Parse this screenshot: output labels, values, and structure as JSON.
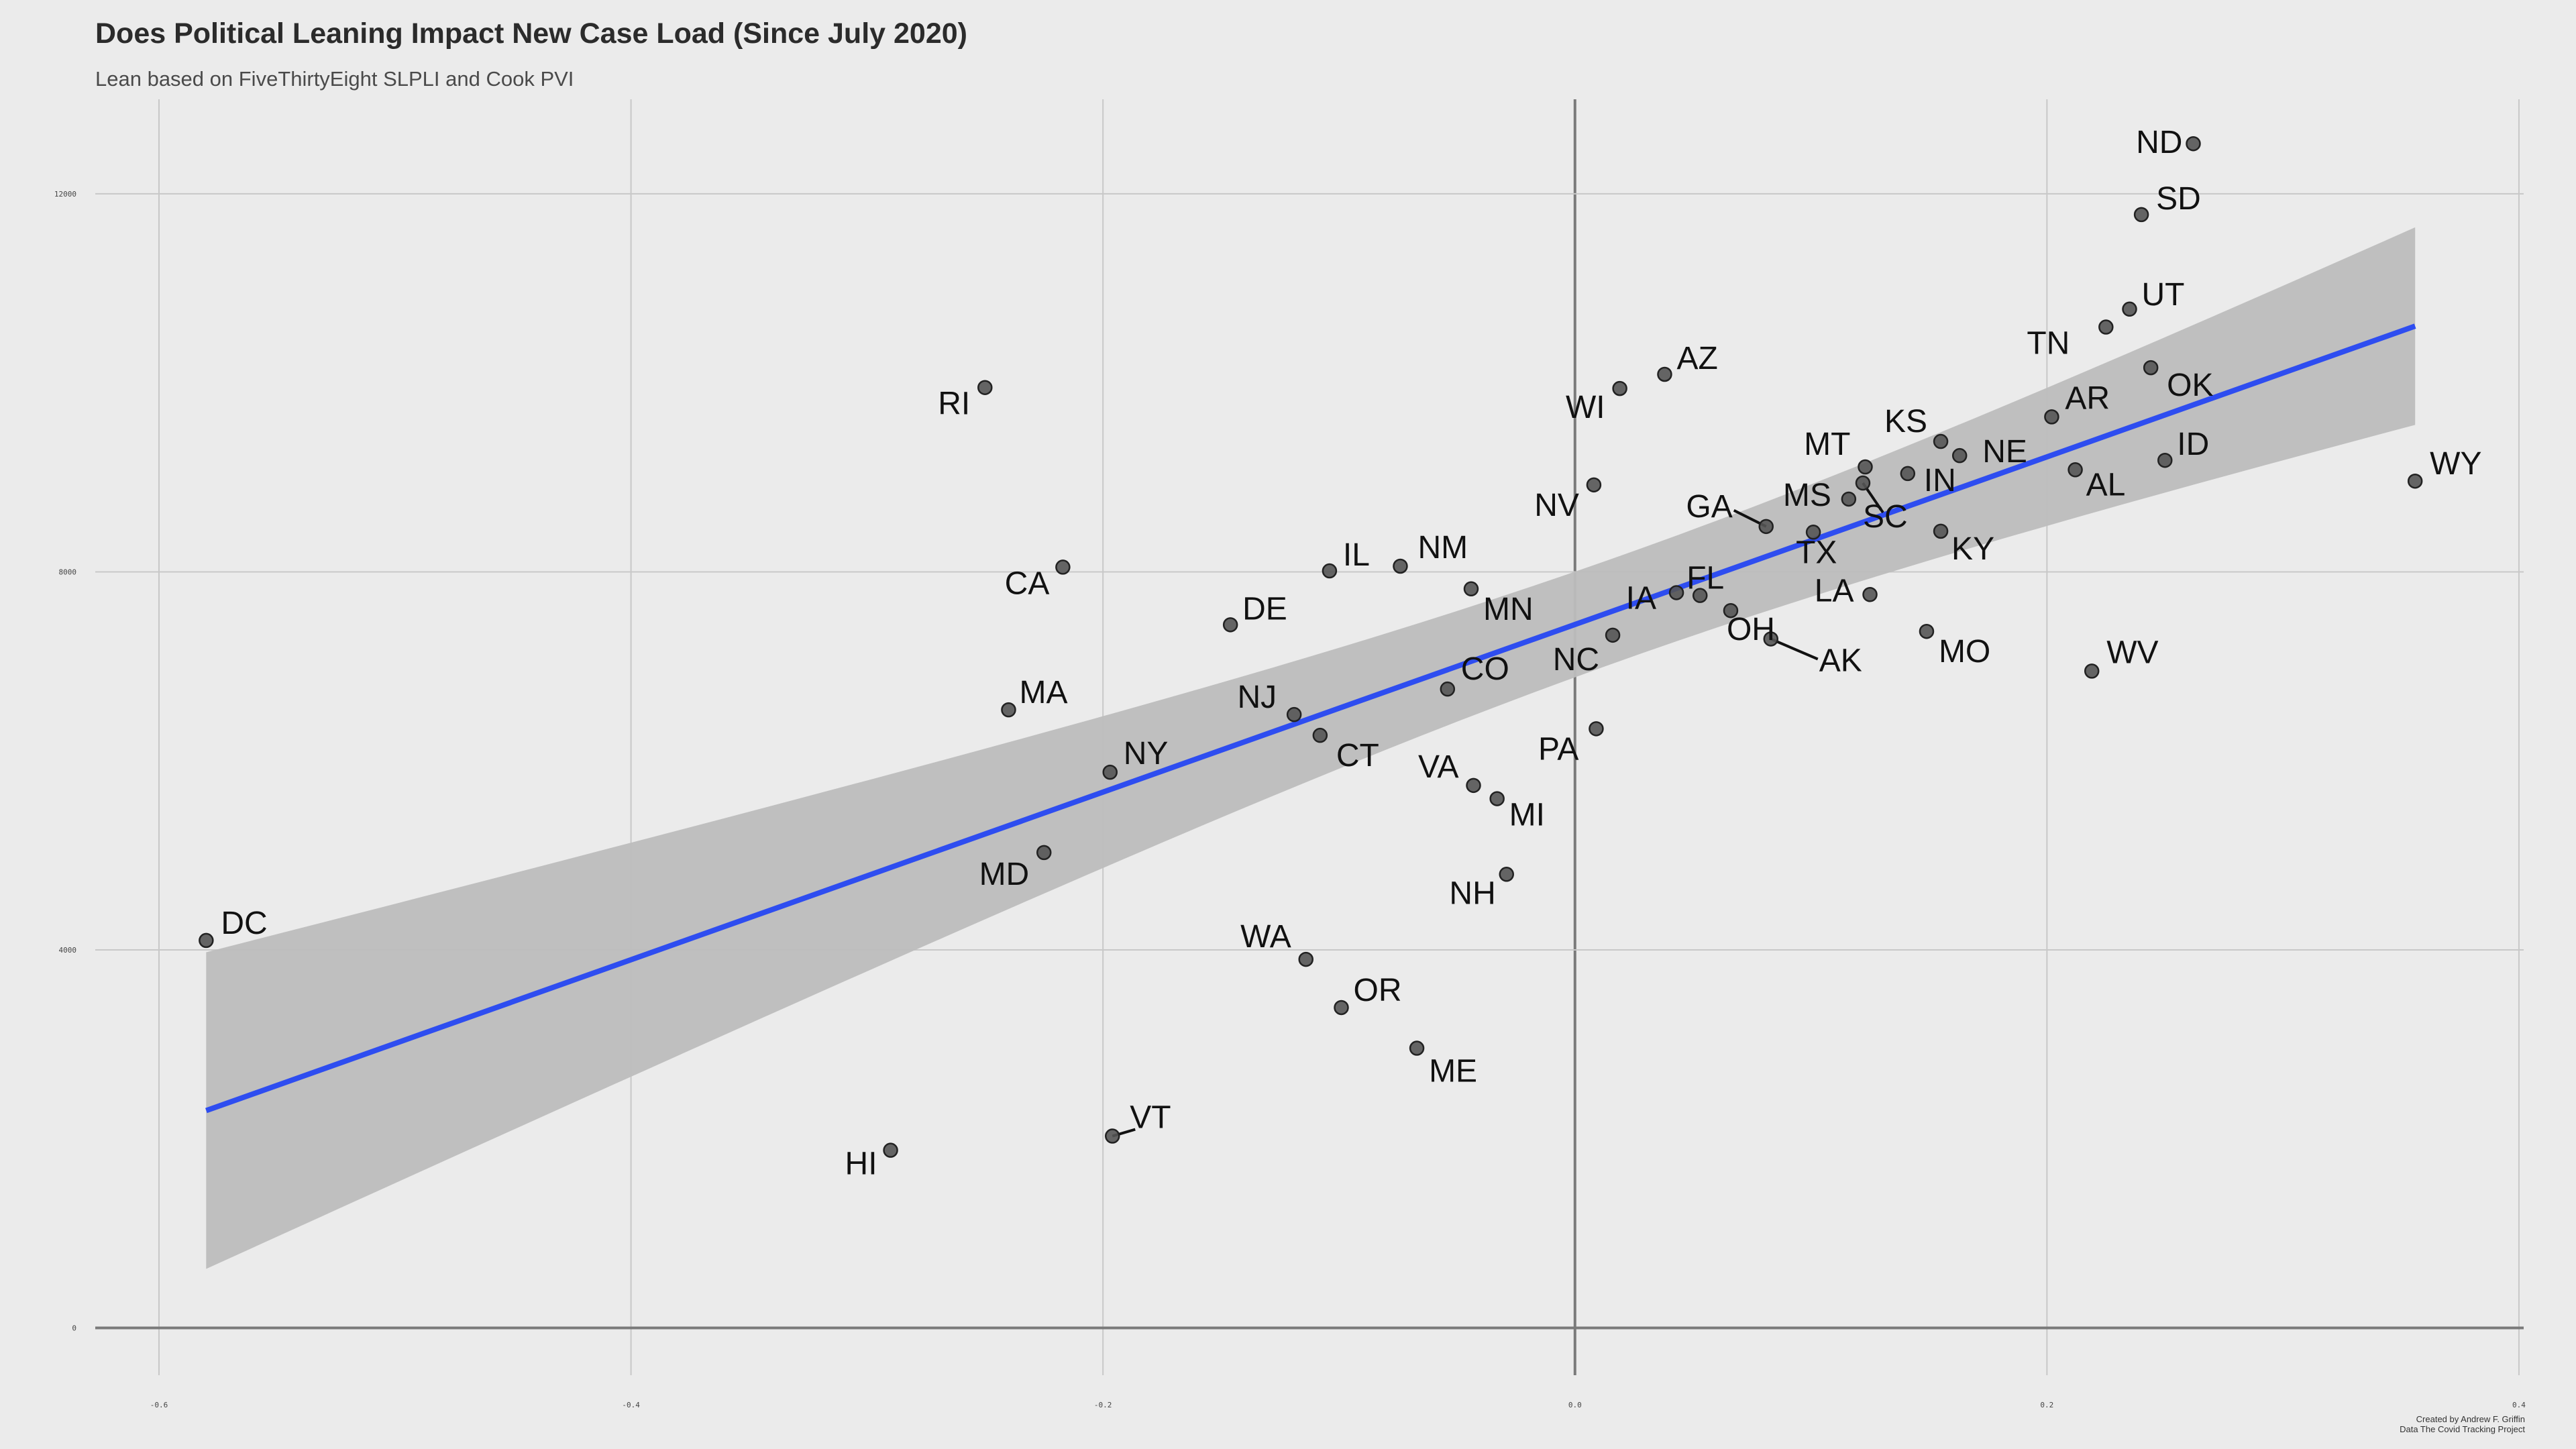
{
  "title": "Does Political Leaning Impact New Case Load (Since July 2020)",
  "subtitle": "Lean based on FiveThirtyEight SLPLI and Cook PVI",
  "caption": {
    "line1": "Created by Andrew F. Griffin",
    "line2": "Data The Covid Tracking Project"
  },
  "colors": {
    "background": "#ebebeb",
    "grid": "#c8c8c8",
    "zero_axis": "#7a7a7a",
    "point": "#555555",
    "regression_line": "#2e4df0",
    "confidence_band": "#bdbdbd"
  },
  "chart_data": {
    "type": "scatter",
    "title": "Does Political Leaning Impact New Case Load (Since July 2020)",
    "subtitle": "Lean based on FiveThirtyEight SLPLI and Cook PVI",
    "xlabel": "",
    "ylabel": "",
    "xlim": [
      -0.627,
      0.402
    ],
    "ylim": [
      -500,
      13000
    ],
    "x_ticks": [
      -0.6,
      -0.4,
      -0.2,
      0.0,
      0.2,
      0.4
    ],
    "x_tick_labels": [
      "-0.6",
      "-0.4",
      "-0.2",
      "0.0",
      "0.2",
      "0.4"
    ],
    "y_ticks": [
      0,
      4000,
      8000,
      12000
    ],
    "y_tick_labels": [
      "0",
      "4000",
      "8000",
      "12000"
    ],
    "grid": true,
    "legend": "none",
    "regression": {
      "x_range": [
        -0.58,
        0.356
      ],
      "y_at_start": 2300,
      "y_at_end": 10600,
      "band_lower": [
        650,
        9560
      ],
      "band_upper": [
        4000,
        11650
      ]
    },
    "points": [
      {
        "label": "DC",
        "x": -0.58,
        "y": 4100
      },
      {
        "label": "HI",
        "x": -0.29,
        "y": 1880
      },
      {
        "label": "VT",
        "x": -0.196,
        "y": 2030
      },
      {
        "label": "RI",
        "x": -0.25,
        "y": 9950
      },
      {
        "label": "CA",
        "x": -0.217,
        "y": 8050
      },
      {
        "label": "MA",
        "x": -0.24,
        "y": 6540
      },
      {
        "label": "NY",
        "x": -0.197,
        "y": 5880
      },
      {
        "label": "MD",
        "x": -0.225,
        "y": 5030
      },
      {
        "label": "DE",
        "x": -0.146,
        "y": 7440
      },
      {
        "label": "IL",
        "x": -0.104,
        "y": 8010
      },
      {
        "label": "NM",
        "x": -0.074,
        "y": 8060
      },
      {
        "label": "NJ",
        "x": -0.119,
        "y": 6490
      },
      {
        "label": "CT",
        "x": -0.108,
        "y": 6270
      },
      {
        "label": "WA",
        "x": -0.114,
        "y": 3900
      },
      {
        "label": "OR",
        "x": -0.099,
        "y": 3390
      },
      {
        "label": "ME",
        "x": -0.067,
        "y": 2960
      },
      {
        "label": "MN",
        "x": -0.044,
        "y": 7820
      },
      {
        "label": "CO",
        "x": -0.054,
        "y": 6760
      },
      {
        "label": "VA",
        "x": -0.043,
        "y": 5740
      },
      {
        "label": "MI",
        "x": -0.033,
        "y": 5600
      },
      {
        "label": "NH",
        "x": -0.029,
        "y": 4800
      },
      {
        "label": "NV",
        "x": 0.008,
        "y": 8920
      },
      {
        "label": "WI",
        "x": 0.019,
        "y": 9940
      },
      {
        "label": "AZ",
        "x": 0.038,
        "y": 10090
      },
      {
        "label": "PA",
        "x": 0.009,
        "y": 6340
      },
      {
        "label": "NC",
        "x": 0.016,
        "y": 7330
      },
      {
        "label": "IA",
        "x": 0.043,
        "y": 7780
      },
      {
        "label": "FL",
        "x": 0.053,
        "y": 7750
      },
      {
        "label": "OH",
        "x": 0.066,
        "y": 7590
      },
      {
        "label": "AK",
        "x": 0.083,
        "y": 7290
      },
      {
        "label": "GA",
        "x": 0.081,
        "y": 8480
      },
      {
        "label": "TX",
        "x": 0.101,
        "y": 8420
      },
      {
        "label": "MT",
        "x": 0.123,
        "y": 9110
      },
      {
        "label": "MS",
        "x": 0.116,
        "y": 8770
      },
      {
        "label": "SC",
        "x": 0.122,
        "y": 8940
      },
      {
        "label": "LA",
        "x": 0.125,
        "y": 7760
      },
      {
        "label": "KS",
        "x": 0.155,
        "y": 9380
      },
      {
        "label": "IN",
        "x": 0.141,
        "y": 9040
      },
      {
        "label": "NE",
        "x": 0.163,
        "y": 9230
      },
      {
        "label": "KY",
        "x": 0.155,
        "y": 8430
      },
      {
        "label": "MO",
        "x": 0.149,
        "y": 7370
      },
      {
        "label": "TN",
        "x": 0.225,
        "y": 10590
      },
      {
        "label": "UT",
        "x": 0.235,
        "y": 10780
      },
      {
        "label": "AR",
        "x": 0.202,
        "y": 9640
      },
      {
        "label": "OK",
        "x": 0.244,
        "y": 10160
      },
      {
        "label": "AL",
        "x": 0.212,
        "y": 9080
      },
      {
        "label": "ID",
        "x": 0.25,
        "y": 9180
      },
      {
        "label": "WV",
        "x": 0.219,
        "y": 6950
      },
      {
        "label": "ND",
        "x": 0.262,
        "y": 12530
      },
      {
        "label": "SD",
        "x": 0.24,
        "y": 11780
      },
      {
        "label": "WY",
        "x": 0.356,
        "y": 8960
      }
    ]
  }
}
